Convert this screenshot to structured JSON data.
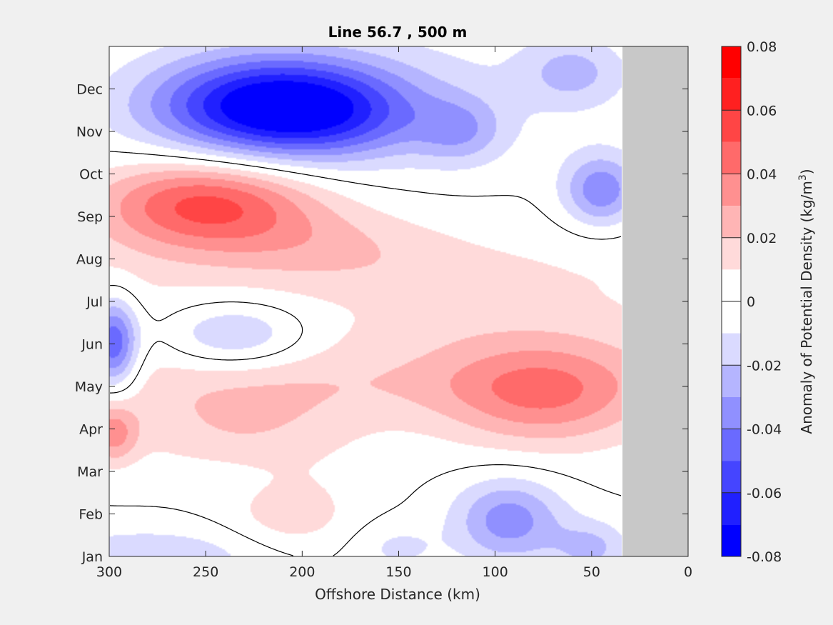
{
  "chart_data": {
    "type": "contour",
    "title": "Line 56.7 , 500 m",
    "xlabel": "Offshore Distance (km)",
    "xlim": [
      300,
      0
    ],
    "x_ticks": [
      300,
      250,
      200,
      150,
      100,
      50,
      0
    ],
    "y_ticks": [
      "Jan",
      "Feb",
      "Mar",
      "Apr",
      "May",
      "Jun",
      "Jul",
      "Aug",
      "Sep",
      "Oct",
      "Nov",
      "Dec"
    ],
    "colorbar": {
      "label_main": "Anomaly of Potential Density (kg/m",
      "label_exp": "3",
      "label_close": ")",
      "clim": [
        -0.08,
        0.08
      ],
      "ticks": [
        0.08,
        0.06,
        0.04,
        0.02,
        0,
        -0.02,
        -0.04,
        -0.06,
        -0.08
      ],
      "tick_labels": [
        "0.08",
        "0.06",
        "0.04",
        "0.02",
        "0",
        "-0.02",
        "-0.04",
        "-0.06",
        "-0.08"
      ],
      "levels": [
        {
          "from": 0.07,
          "to": 0.08,
          "color": "#ff0000"
        },
        {
          "from": 0.06,
          "to": 0.07,
          "color": "#ff2020"
        },
        {
          "from": 0.05,
          "to": 0.06,
          "color": "#ff4545"
        },
        {
          "from": 0.04,
          "to": 0.05,
          "color": "#ff6a6a"
        },
        {
          "from": 0.03,
          "to": 0.04,
          "color": "#ff9090"
        },
        {
          "from": 0.02,
          "to": 0.03,
          "color": "#ffb5b5"
        },
        {
          "from": 0.01,
          "to": 0.02,
          "color": "#ffdada"
        },
        {
          "from": 0.0,
          "to": 0.01,
          "color": "#ffffff"
        },
        {
          "from": -0.01,
          "to": 0.0,
          "color": "#ffffff"
        },
        {
          "from": -0.02,
          "to": -0.01,
          "color": "#dadaff"
        },
        {
          "from": -0.03,
          "to": -0.02,
          "color": "#b5b5ff"
        },
        {
          "from": -0.04,
          "to": -0.03,
          "color": "#9090ff"
        },
        {
          "from": -0.05,
          "to": -0.04,
          "color": "#6a6aff"
        },
        {
          "from": -0.06,
          "to": -0.05,
          "color": "#4545ff"
        },
        {
          "from": -0.07,
          "to": -0.06,
          "color": "#2020ff"
        },
        {
          "from": -0.08,
          "to": -0.07,
          "color": "#0000ff"
        }
      ]
    },
    "land_mask": {
      "x_from": 34,
      "x_to": 0,
      "color": "#c8c8c8"
    },
    "field_features": [
      {
        "x": 215,
        "t": 10.6,
        "sx": 45,
        "st": 0.85,
        "amp": -0.08
      },
      {
        "x": 180,
        "t": 10.3,
        "sx": 35,
        "st": 0.7,
        "amp": -0.015
      },
      {
        "x": 118,
        "t": 10.0,
        "sx": 16,
        "st": 0.55,
        "amp": -0.022
      },
      {
        "x": 45,
        "t": 8.6,
        "sx": 14,
        "st": 0.6,
        "amp": -0.038
      },
      {
        "x": 60,
        "t": 11.4,
        "sx": 18,
        "st": 0.55,
        "amp": -0.02
      },
      {
        "x": 110,
        "t": 11.0,
        "sx": 70,
        "st": 1.3,
        "amp": -0.007
      },
      {
        "x": 250,
        "t": 8.3,
        "sx": 40,
        "st": 0.75,
        "amp": 0.052
      },
      {
        "x": 190,
        "t": 7.4,
        "sx": 42,
        "st": 0.6,
        "amp": 0.012
      },
      {
        "x": 150,
        "t": 6.6,
        "sx": 45,
        "st": 0.55,
        "amp": 0.004
      },
      {
        "x": 235,
        "t": 5.2,
        "sx": 26,
        "st": 0.55,
        "amp": -0.028
      },
      {
        "x": 298,
        "t": 5.0,
        "sx": 9,
        "st": 0.75,
        "amp": -0.055
      },
      {
        "x": 75,
        "t": 3.8,
        "sx": 38,
        "st": 0.9,
        "amp": 0.035
      },
      {
        "x": 140,
        "t": 4.1,
        "sx": 60,
        "st": 0.55,
        "amp": 0.006
      },
      {
        "x": 120,
        "t": 5.3,
        "sx": 50,
        "st": 0.45,
        "amp": 0.004
      },
      {
        "x": 230,
        "t": 3.1,
        "sx": 45,
        "st": 1.0,
        "amp": 0.018
      },
      {
        "x": 205,
        "t": 1.0,
        "sx": 20,
        "st": 0.55,
        "amp": 0.016
      },
      {
        "x": 298,
        "t": 2.9,
        "sx": 9,
        "st": 0.5,
        "amp": 0.03
      },
      {
        "x": 93,
        "t": 0.85,
        "sx": 20,
        "st": 0.7,
        "amp": -0.036
      },
      {
        "x": 50,
        "t": 0.2,
        "sx": 14,
        "st": 0.45,
        "amp": -0.022
      },
      {
        "x": 280,
        "t": -0.05,
        "sx": 40,
        "st": 0.5,
        "amp": -0.02
      },
      {
        "x": 150,
        "t": 0.2,
        "sx": 15,
        "st": 0.4,
        "amp": -0.012
      },
      {
        "x": 250,
        "t": 1.8,
        "sx": 25,
        "st": 0.35,
        "amp": -0.006
      }
    ],
    "field_base": [
      {
        "t": 4.4,
        "amp": 0.009
      },
      {
        "t": 6.7,
        "amp": 0.009
      }
    ]
  }
}
